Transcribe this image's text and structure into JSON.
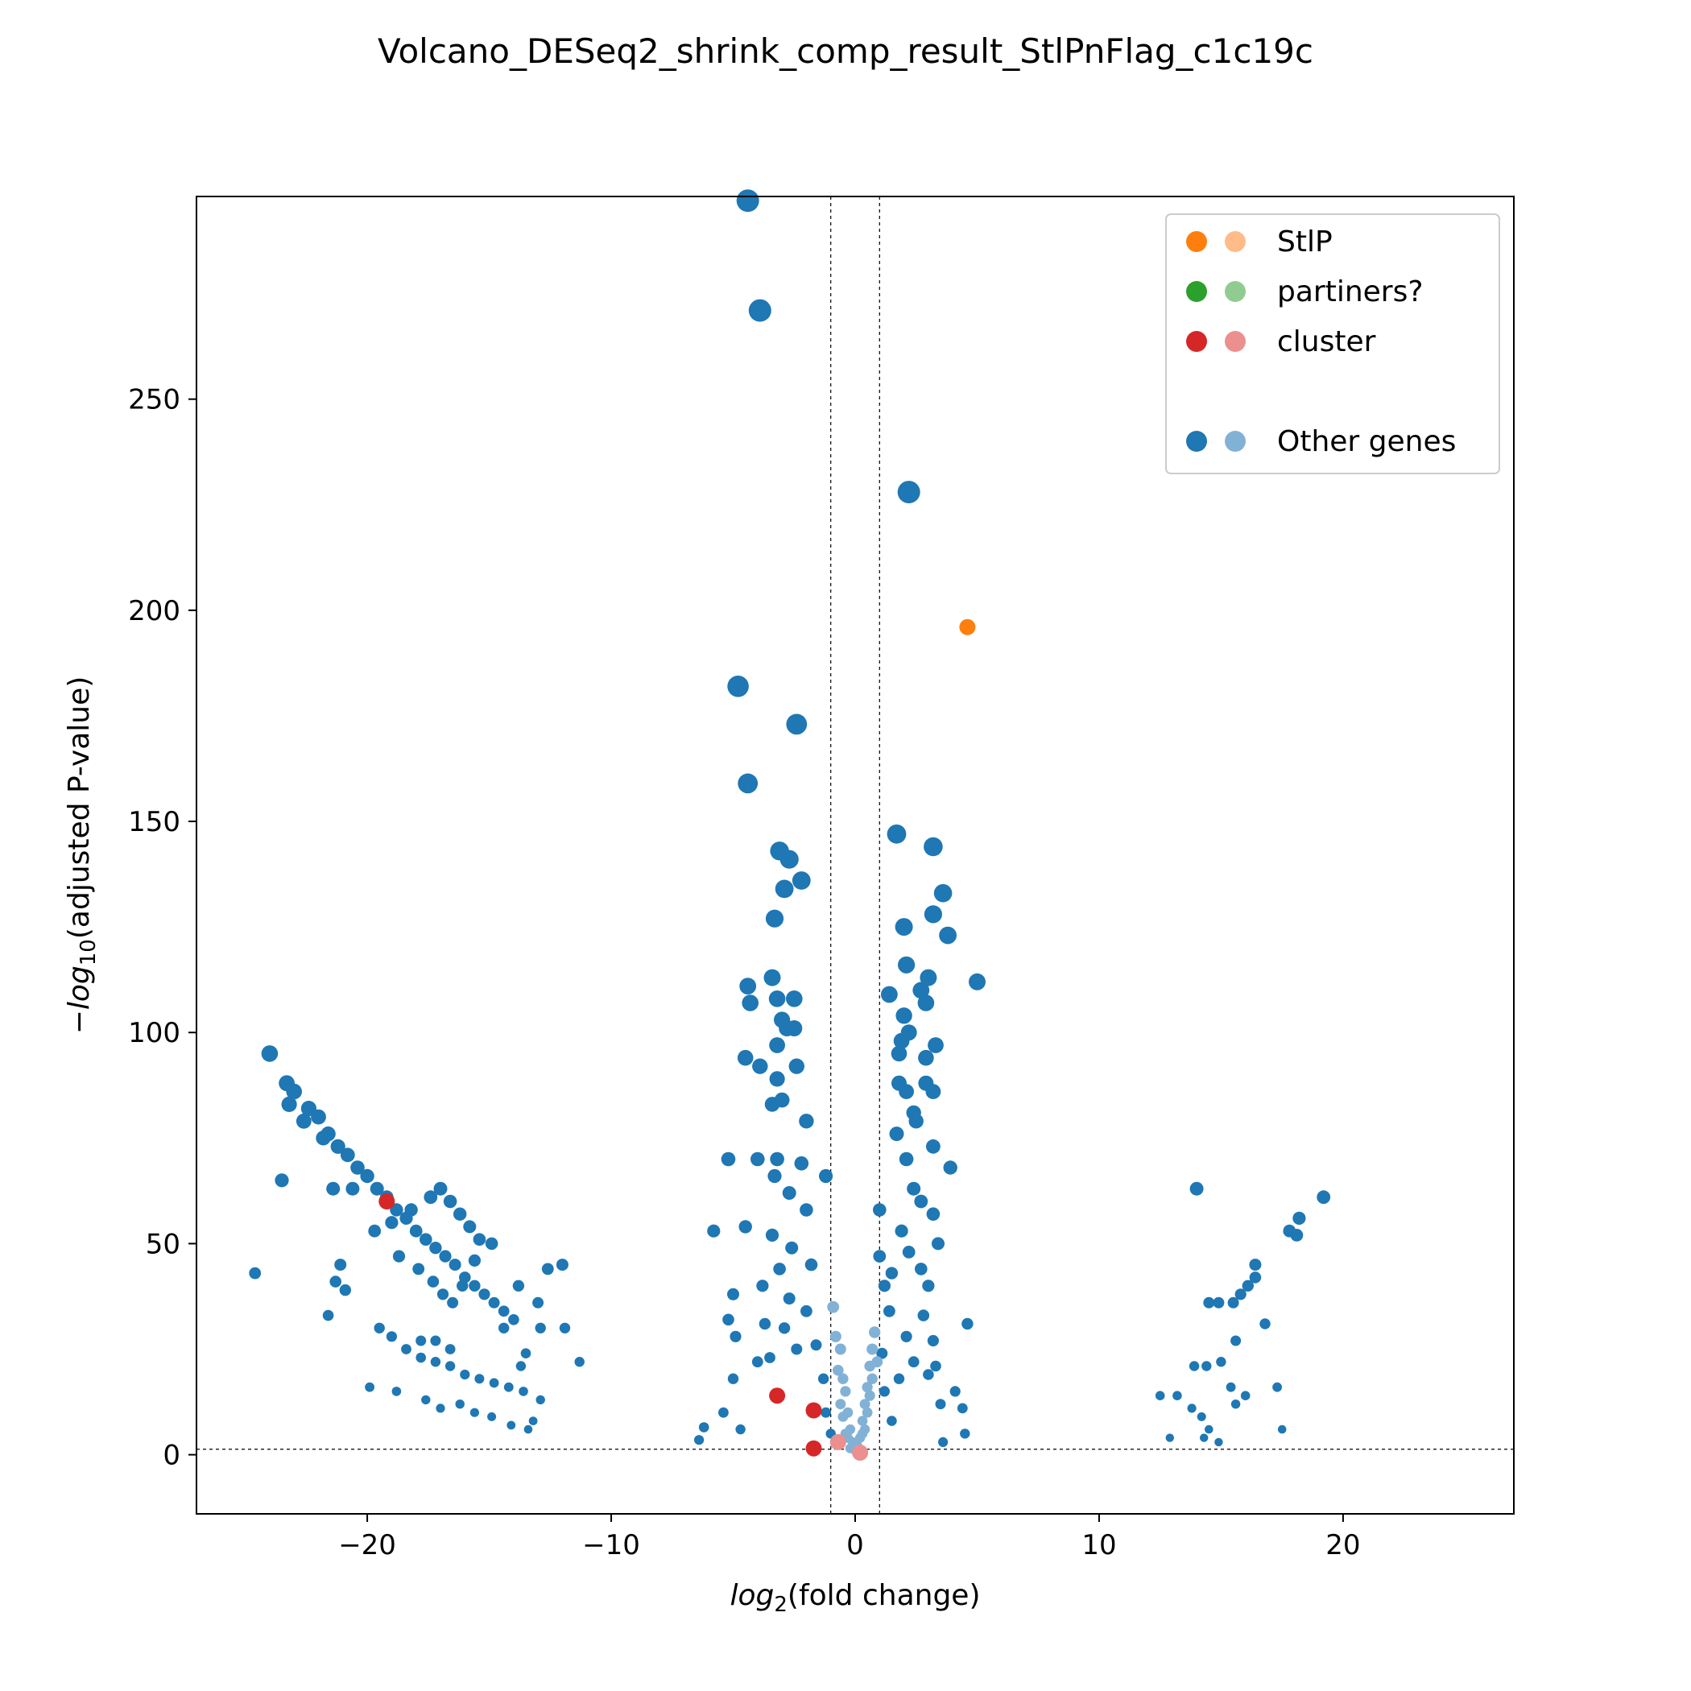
{
  "chart_data": {
    "type": "scatter",
    "title": "Volcano_DESeq2_shrink_comp_result_StlPnFlag_c1c19c",
    "xlabel_base": "log",
    "xlabel_sub": "2",
    "xlabel_rest": "(fold change)",
    "ylabel_prefix": "−log",
    "ylabel_sub": "10",
    "ylabel_rest": "(adjusted P-value)",
    "xlim": [
      -27,
      27
    ],
    "ylim": [
      -14,
      298
    ],
    "xticks": [
      -20,
      -10,
      0,
      10,
      20
    ],
    "xtick_labels": [
      "−20",
      "−10",
      "0",
      "10",
      "20"
    ],
    "yticks": [
      0,
      50,
      100,
      150,
      200,
      250
    ],
    "ytick_labels": [
      "0",
      "50",
      "100",
      "150",
      "200",
      "250"
    ],
    "threshold_lines": {
      "x": [
        -1,
        1
      ],
      "y": 1.3
    },
    "legend_position": "upper-right",
    "legend": [
      {
        "label": "StlP",
        "color_sig": "#ff7f0e",
        "color_nonsig": "#ffbb88"
      },
      {
        "label": "partiners?",
        "color_sig": "#2ca02c",
        "color_nonsig": "#90cc90"
      },
      {
        "label": "cluster",
        "color_sig": "#d62728",
        "color_nonsig": "#eb8f8f"
      },
      {
        "label": "",
        "color_sig": "",
        "color_nonsig": ""
      },
      {
        "label": "Other genes",
        "color_sig": "#1f77b4",
        "color_nonsig": "#82b1d6"
      }
    ],
    "series": [
      {
        "name": "StlP",
        "color": "#ff7f0e",
        "points": [
          [
            4.6,
            196
          ]
        ]
      },
      {
        "name": "cluster",
        "color": "#d62728",
        "points": [
          [
            -3.2,
            14
          ],
          [
            -1.7,
            10.5
          ],
          [
            -1.7,
            1.5
          ],
          [
            -19.2,
            60
          ]
        ]
      },
      {
        "name": "cluster",
        "color": "#eb8f8f",
        "points": [
          [
            -0.7,
            3
          ],
          [
            0.2,
            0.5
          ]
        ]
      },
      {
        "name": "Other genes",
        "color": "#1f77b4",
        "points": [
          [
            -4.4,
            297
          ],
          [
            -3.9,
            271
          ],
          [
            2.2,
            228
          ],
          [
            -4.8,
            182
          ],
          [
            -2.4,
            173
          ],
          [
            -4.4,
            159
          ],
          [
            -3.1,
            143
          ],
          [
            -2.7,
            141
          ],
          [
            -2.2,
            136
          ],
          [
            -2.9,
            134
          ],
          [
            -3.3,
            127
          ],
          [
            1.7,
            147
          ],
          [
            3.2,
            144
          ],
          [
            3.6,
            133
          ],
          [
            3.2,
            128
          ],
          [
            2.0,
            125
          ],
          [
            3.8,
            123
          ],
          [
            2.1,
            116
          ],
          [
            3.0,
            113
          ],
          [
            2.7,
            110
          ],
          [
            2.9,
            107
          ],
          [
            1.4,
            109
          ],
          [
            5.0,
            112
          ],
          [
            -3.4,
            113
          ],
          [
            -4.4,
            111
          ],
          [
            -3.2,
            108
          ],
          [
            -2.5,
            108
          ],
          [
            -4.3,
            107
          ],
          [
            -3.0,
            103
          ],
          [
            -2.8,
            101
          ],
          [
            -2.5,
            101
          ],
          [
            -3.2,
            97
          ],
          [
            -4.5,
            94
          ],
          [
            -3.9,
            92
          ],
          [
            -2.4,
            92
          ],
          [
            -3.2,
            89
          ],
          [
            -3.4,
            83
          ],
          [
            -3.0,
            84
          ],
          [
            -2.0,
            79
          ],
          [
            -5.2,
            70
          ],
          [
            -4.0,
            70
          ],
          [
            -3.2,
            70
          ],
          [
            -2.2,
            69
          ],
          [
            -1.2,
            66
          ],
          [
            -3.3,
            66
          ],
          [
            -2.7,
            62
          ],
          [
            -4.5,
            54
          ],
          [
            -5.8,
            53
          ],
          [
            -2.0,
            58
          ],
          [
            2.0,
            104
          ],
          [
            2.2,
            100
          ],
          [
            1.9,
            98
          ],
          [
            3.3,
            97
          ],
          [
            2.9,
            94
          ],
          [
            1.8,
            95
          ],
          [
            1.8,
            88
          ],
          [
            2.9,
            88
          ],
          [
            2.1,
            86
          ],
          [
            3.2,
            86
          ],
          [
            2.4,
            81
          ],
          [
            2.5,
            79
          ],
          [
            1.7,
            76
          ],
          [
            3.2,
            73
          ],
          [
            3.9,
            68
          ],
          [
            2.1,
            70
          ],
          [
            2.4,
            63
          ],
          [
            3.2,
            57
          ],
          [
            2.7,
            60
          ],
          [
            3.4,
            50
          ],
          [
            1.0,
            58
          ],
          [
            1.0,
            47
          ],
          [
            -5.0,
            38
          ],
          [
            -5.2,
            32
          ],
          [
            -4.9,
            28
          ],
          [
            -5.0,
            18
          ],
          [
            -6.4,
            3.5
          ],
          [
            -6.2,
            6.5
          ],
          [
            -5.4,
            10
          ],
          [
            -4.7,
            6
          ],
          [
            -3.7,
            31
          ],
          [
            -4.0,
            22
          ],
          [
            -3.8,
            40
          ],
          [
            -3.5,
            23
          ],
          [
            -2.9,
            30
          ],
          [
            -2.7,
            37
          ],
          [
            -2.4,
            25
          ],
          [
            -2.0,
            34
          ],
          [
            -1.6,
            26
          ],
          [
            -1.3,
            18
          ],
          [
            -1.2,
            10
          ],
          [
            -1.0,
            5
          ],
          [
            -1.8,
            45
          ],
          [
            -2.6,
            49
          ],
          [
            -3.1,
            44
          ],
          [
            -3.4,
            52
          ],
          [
            1.2,
            40
          ],
          [
            1.4,
            34
          ],
          [
            1.1,
            24
          ],
          [
            1.2,
            15
          ],
          [
            1.5,
            8
          ],
          [
            1.8,
            18
          ],
          [
            2.1,
            28
          ],
          [
            2.4,
            22
          ],
          [
            2.8,
            33
          ],
          [
            3.0,
            19
          ],
          [
            3.2,
            27
          ],
          [
            3.3,
            21
          ],
          [
            3.5,
            12
          ],
          [
            4.1,
            15
          ],
          [
            4.5,
            5
          ],
          [
            4.6,
            31
          ],
          [
            4.4,
            11
          ],
          [
            3.6,
            3
          ],
          [
            2.7,
            44
          ],
          [
            3.0,
            40
          ],
          [
            2.2,
            48
          ],
          [
            1.9,
            53
          ],
          [
            1.5,
            43
          ],
          [
            -24.0,
            95
          ],
          [
            -23.3,
            88
          ],
          [
            -23.0,
            86
          ],
          [
            -22.4,
            82
          ],
          [
            -22.0,
            80
          ],
          [
            -21.6,
            76
          ],
          [
            -21.2,
            73
          ],
          [
            -20.8,
            71
          ],
          [
            -20.4,
            68
          ],
          [
            -20.0,
            66
          ],
          [
            -19.6,
            63
          ],
          [
            -19.2,
            61
          ],
          [
            -18.8,
            58
          ],
          [
            -18.4,
            56
          ],
          [
            -18.0,
            53
          ],
          [
            -17.6,
            51
          ],
          [
            -17.2,
            49
          ],
          [
            -16.8,
            47
          ],
          [
            -16.4,
            45
          ],
          [
            -16.0,
            42
          ],
          [
            -15.6,
            40
          ],
          [
            -15.2,
            38
          ],
          [
            -14.8,
            36
          ],
          [
            -14.4,
            34
          ],
          [
            -14.0,
            32
          ],
          [
            -23.2,
            83
          ],
          [
            -22.6,
            79
          ],
          [
            -21.8,
            75
          ],
          [
            -23.5,
            65
          ],
          [
            -21.4,
            63
          ],
          [
            -20.6,
            63
          ],
          [
            -24.6,
            43
          ],
          [
            -21.1,
            45
          ],
          [
            -21.3,
            41
          ],
          [
            -20.9,
            39
          ],
          [
            -21.6,
            33
          ],
          [
            -19.7,
            53
          ],
          [
            -19.0,
            55
          ],
          [
            -18.2,
            58
          ],
          [
            -17.4,
            61
          ],
          [
            -17.0,
            63
          ],
          [
            -16.6,
            60
          ],
          [
            -16.2,
            57
          ],
          [
            -15.8,
            54
          ],
          [
            -15.4,
            51
          ],
          [
            -18.7,
            47
          ],
          [
            -17.9,
            44
          ],
          [
            -17.3,
            41
          ],
          [
            -16.9,
            38
          ],
          [
            -16.5,
            36
          ],
          [
            -16.1,
            40
          ],
          [
            -15.6,
            46
          ],
          [
            -14.9,
            50
          ],
          [
            -13.8,
            40
          ],
          [
            -13.0,
            36
          ],
          [
            -12.0,
            45
          ],
          [
            -12.9,
            30
          ],
          [
            -11.9,
            30
          ],
          [
            -11.3,
            22
          ],
          [
            -12.9,
            13
          ],
          [
            -12.6,
            44
          ],
          [
            -19.5,
            30
          ],
          [
            -19.0,
            28
          ],
          [
            -18.4,
            25
          ],
          [
            -17.8,
            23
          ],
          [
            -17.2,
            22
          ],
          [
            -16.6,
            21
          ],
          [
            -16.0,
            19
          ],
          [
            -15.4,
            18
          ],
          [
            -14.8,
            17
          ],
          [
            -14.2,
            16
          ],
          [
            -13.6,
            15
          ],
          [
            -19.9,
            16
          ],
          [
            -18.8,
            15
          ],
          [
            -17.6,
            13
          ],
          [
            -17.0,
            11
          ],
          [
            -16.2,
            12
          ],
          [
            -15.6,
            10
          ],
          [
            -14.9,
            9
          ],
          [
            -14.1,
            7
          ],
          [
            -13.4,
            6
          ],
          [
            -13.2,
            8
          ],
          [
            -13.5,
            24
          ],
          [
            -13.7,
            21
          ],
          [
            -14.4,
            30
          ],
          [
            -17.8,
            27
          ],
          [
            -17.2,
            27
          ],
          [
            -16.6,
            25
          ],
          [
            14.0,
            63
          ],
          [
            19.2,
            61
          ],
          [
            18.2,
            56
          ],
          [
            17.8,
            53
          ],
          [
            18.1,
            52
          ],
          [
            16.4,
            45
          ],
          [
            16.4,
            42
          ],
          [
            16.1,
            40
          ],
          [
            15.8,
            38
          ],
          [
            15.5,
            36
          ],
          [
            14.9,
            36
          ],
          [
            14.5,
            36
          ],
          [
            16.8,
            31
          ],
          [
            15.6,
            27
          ],
          [
            14.4,
            21
          ],
          [
            15.0,
            22
          ],
          [
            13.9,
            21
          ],
          [
            15.4,
            16
          ],
          [
            16.0,
            14
          ],
          [
            17.3,
            16
          ],
          [
            15.6,
            12
          ],
          [
            12.5,
            14
          ],
          [
            13.2,
            14
          ],
          [
            14.2,
            9
          ],
          [
            13.8,
            11
          ],
          [
            14.5,
            6
          ],
          [
            14.9,
            3
          ],
          [
            17.5,
            6
          ],
          [
            12.9,
            4
          ],
          [
            14.3,
            4
          ]
        ]
      },
      {
        "name": "Other genes",
        "color": "#82b1d6",
        "points": [
          [
            -0.8,
            28
          ],
          [
            -0.6,
            25
          ],
          [
            -0.5,
            18
          ],
          [
            -0.4,
            15
          ],
          [
            -0.3,
            10
          ],
          [
            -0.2,
            6
          ],
          [
            -0.1,
            3
          ],
          [
            0.0,
            1
          ],
          [
            0.1,
            2
          ],
          [
            0.2,
            4
          ],
          [
            0.3,
            8
          ],
          [
            0.4,
            12
          ],
          [
            0.5,
            16
          ],
          [
            0.6,
            21
          ],
          [
            0.7,
            25
          ],
          [
            0.8,
            29
          ],
          [
            -0.9,
            35
          ],
          [
            -0.7,
            20
          ],
          [
            -0.5,
            9
          ],
          [
            -0.3,
            4
          ],
          [
            0.3,
            5
          ],
          [
            0.5,
            10
          ],
          [
            0.7,
            18
          ],
          [
            0.9,
            22
          ],
          [
            -0.6,
            12
          ],
          [
            0.6,
            14
          ],
          [
            -0.2,
            1.5
          ],
          [
            0.2,
            1
          ],
          [
            -0.4,
            5
          ],
          [
            0.4,
            6
          ]
        ]
      }
    ]
  }
}
